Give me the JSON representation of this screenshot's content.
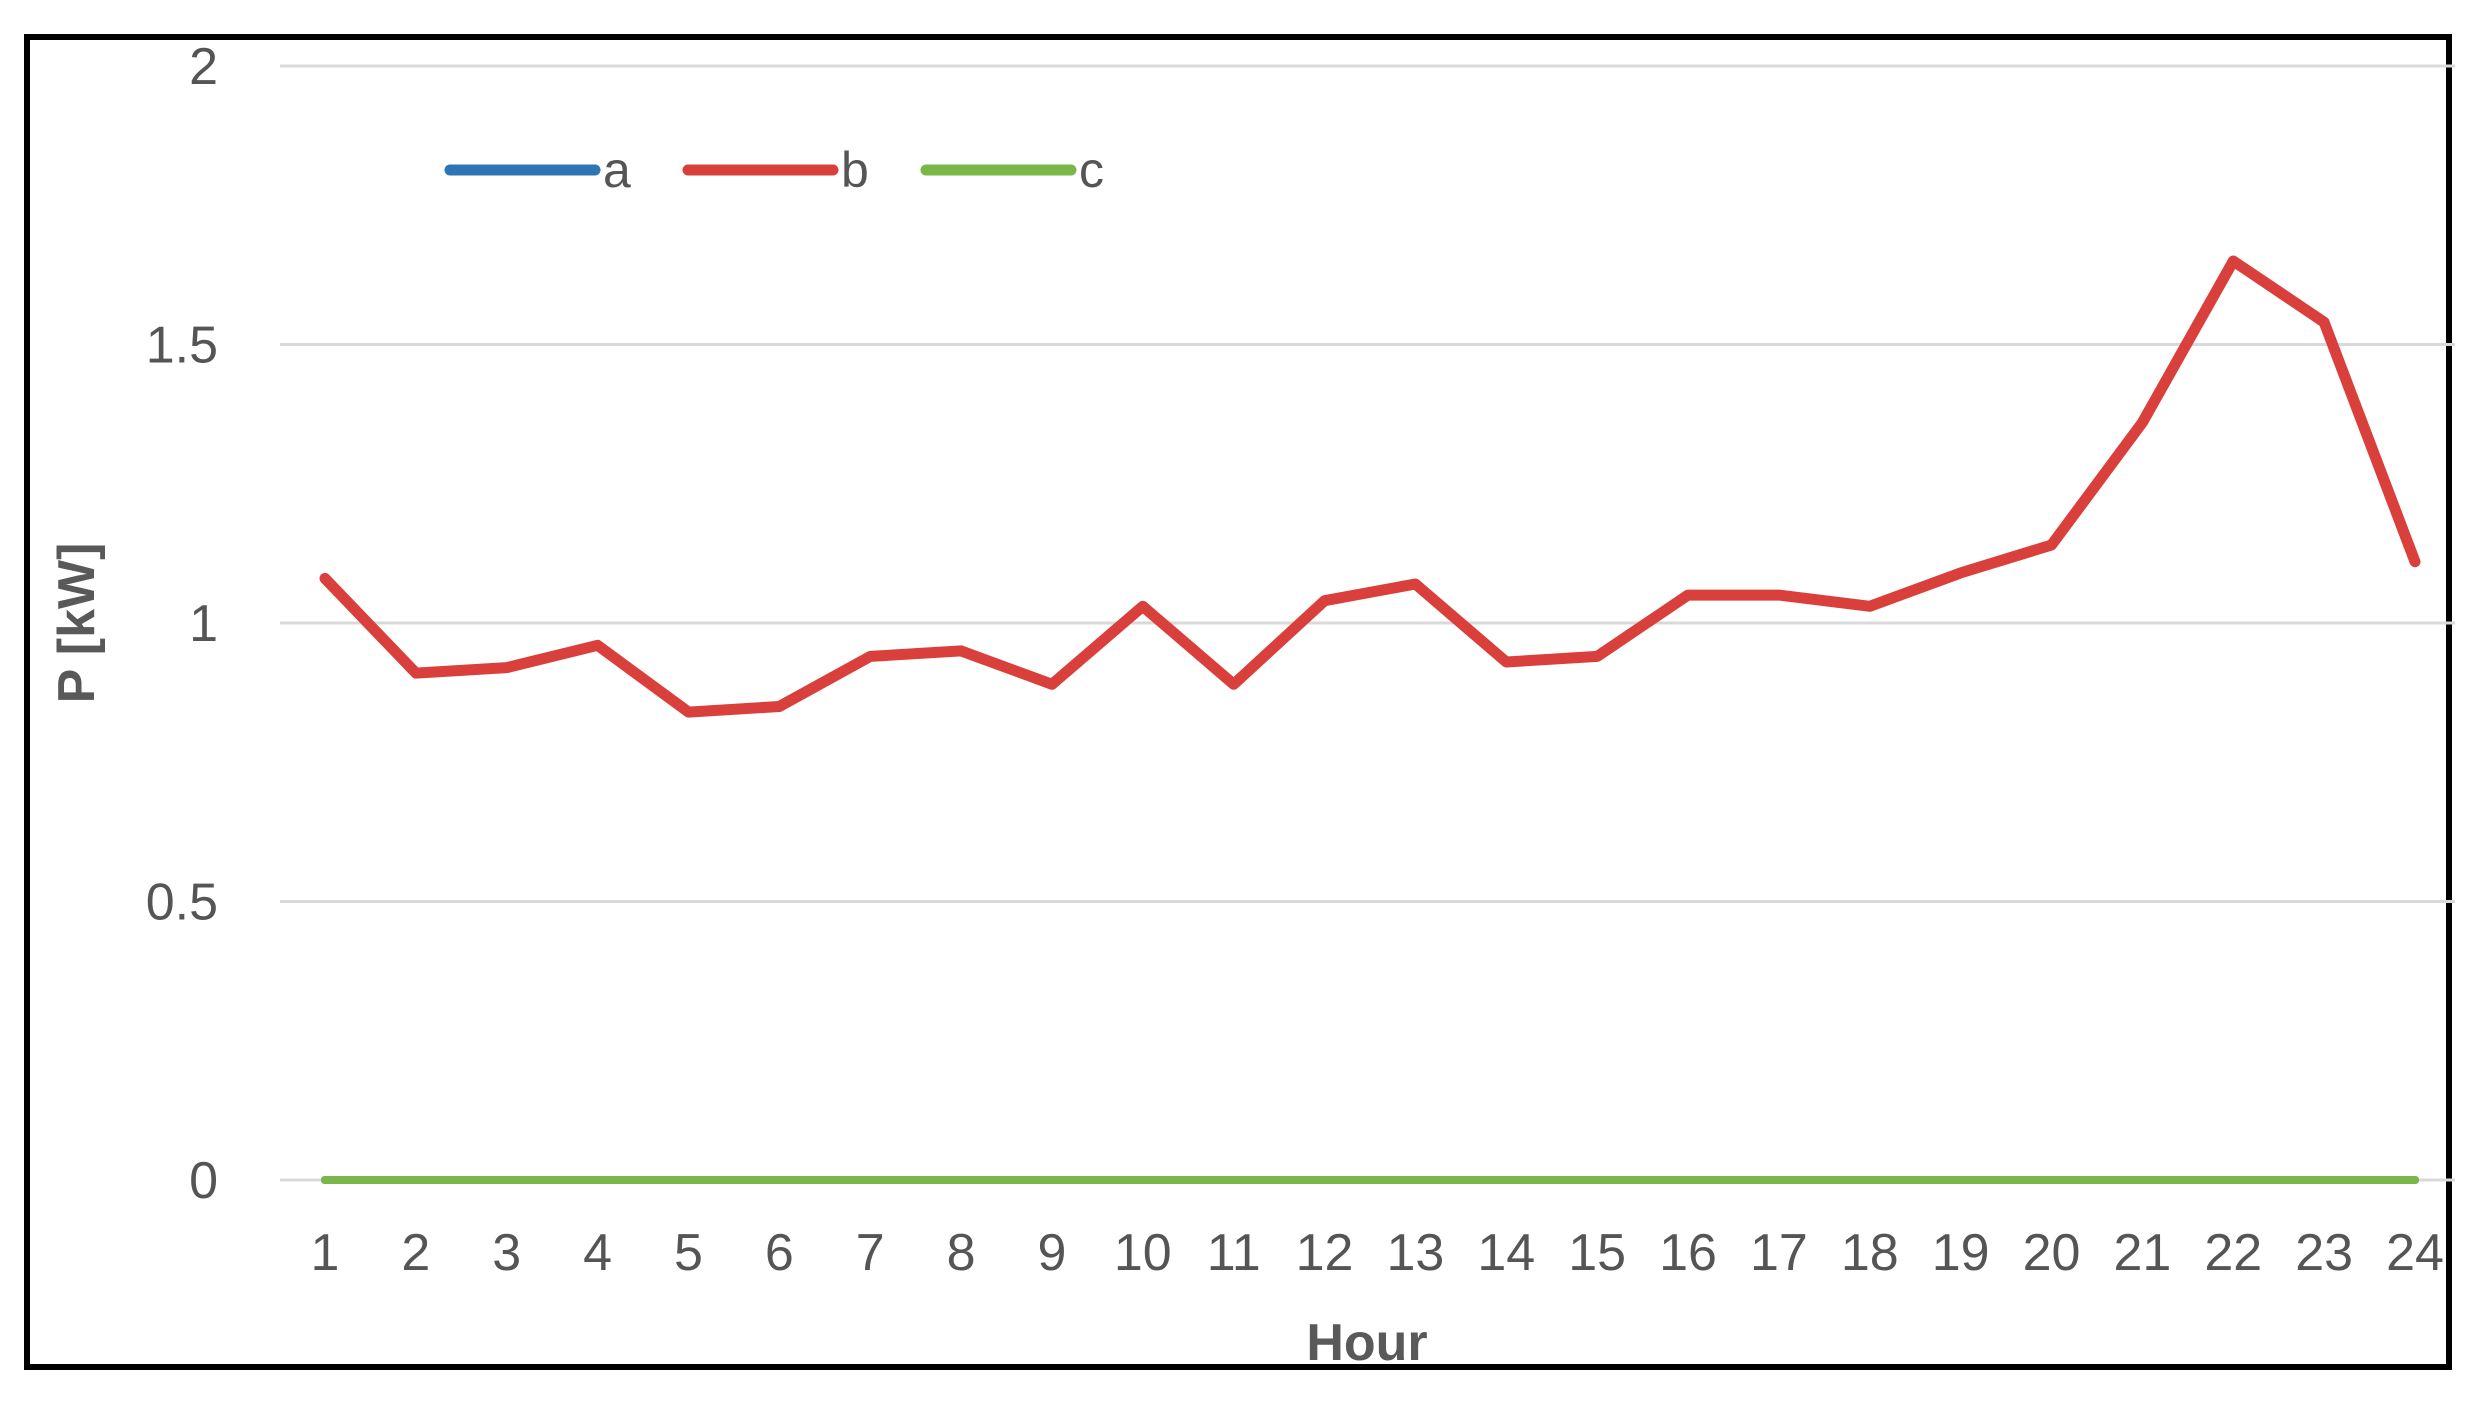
{
  "chart_data": {
    "type": "line",
    "title": "",
    "xlabel": "Hour",
    "ylabel": "P [kW]",
    "categories": [
      "1",
      "2",
      "3",
      "4",
      "5",
      "6",
      "7",
      "8",
      "9",
      "10",
      "11",
      "12",
      "13",
      "14",
      "15",
      "16",
      "17",
      "18",
      "19",
      "20",
      "21",
      "22",
      "23",
      "24"
    ],
    "ylim": [
      0,
      2
    ],
    "yticks": [
      "0",
      "0.5",
      "1",
      "1.5",
      "2"
    ],
    "grid": true,
    "legend_position": "top-left",
    "series": [
      {
        "name": "a",
        "color": "#2E75B6",
        "values": [
          0,
          0,
          0,
          0,
          0,
          0,
          0,
          0,
          0,
          0,
          0,
          0,
          0,
          0,
          0,
          0,
          0,
          0,
          0,
          0,
          0,
          0,
          0,
          0
        ]
      },
      {
        "name": "b",
        "color": "#D9403C",
        "values": [
          1.08,
          0.91,
          0.92,
          0.96,
          0.84,
          0.85,
          0.94,
          0.95,
          0.89,
          1.03,
          0.89,
          1.04,
          1.07,
          0.93,
          0.94,
          1.05,
          1.05,
          1.03,
          1.09,
          1.14,
          1.36,
          1.65,
          1.54,
          1.11
        ]
      },
      {
        "name": "c",
        "color": "#7AB648",
        "values": [
          0,
          0,
          0,
          0,
          0,
          0,
          0,
          0,
          0,
          0,
          0,
          0,
          0,
          0,
          0,
          0,
          0,
          0,
          0,
          0,
          0,
          0,
          0,
          0
        ]
      }
    ]
  }
}
